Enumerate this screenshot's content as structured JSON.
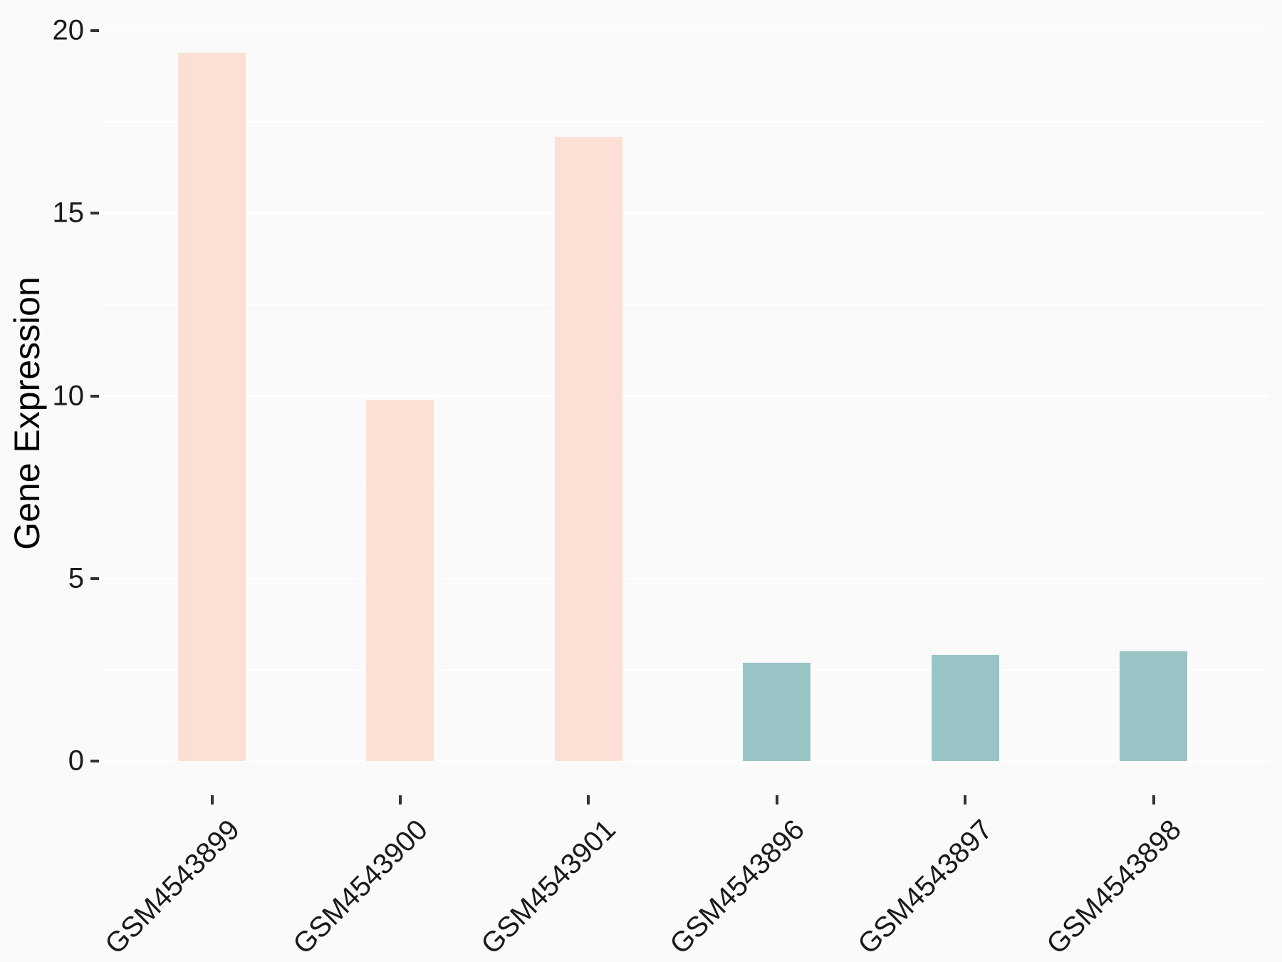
{
  "chart_data": {
    "type": "bar",
    "title": "",
    "xlabel": "",
    "ylabel": "Gene Expression",
    "categories": [
      "GSM4543899",
      "GSM4543900",
      "GSM4543901",
      "GSM4543896",
      "GSM4543897",
      "GSM4543898"
    ],
    "values": [
      19.4,
      9.9,
      17.1,
      2.7,
      2.9,
      3.0
    ],
    "groups": [
      "group1",
      "group1",
      "group1",
      "group2",
      "group2",
      "group2"
    ],
    "group_colors": {
      "group1": "#FCE0D5",
      "group2": "#99C4C6"
    },
    "ylim": [
      0,
      20.4
    ],
    "yticks": [
      0,
      5,
      10,
      15,
      20
    ],
    "minor_gridlines": [
      2.5,
      7.5,
      12.5,
      17.5
    ],
    "grid": "on",
    "legend": "none",
    "background_color": "#FAFAFA",
    "gridline_color": "#FFFFFF",
    "tick_color": "#333333",
    "text_color": "#1a1a1a"
  }
}
